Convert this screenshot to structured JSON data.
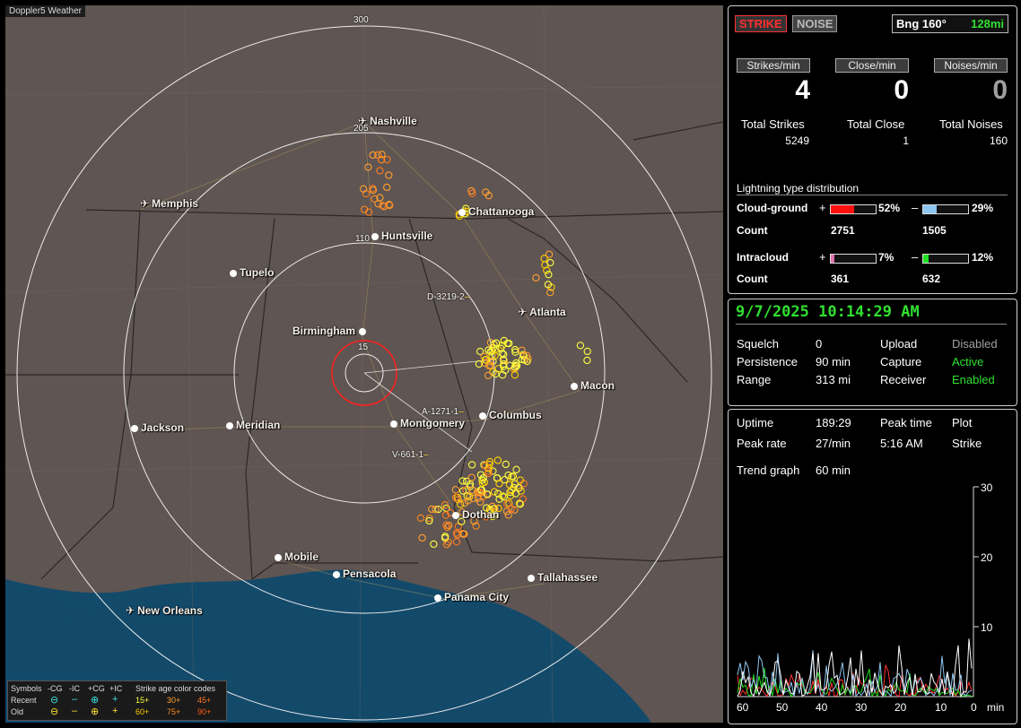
{
  "map": {
    "title": "Doppler5 Weather",
    "ring_labels": [
      "300",
      "205",
      "110",
      "15"
    ],
    "cities": [
      {
        "name": "Nashville",
        "kind": "airport"
      },
      {
        "name": "Memphis",
        "kind": "airport"
      },
      {
        "name": "Chattanooga",
        "kind": "city"
      },
      {
        "name": "Huntsville",
        "kind": "city"
      },
      {
        "name": "Tupelo",
        "kind": "city"
      },
      {
        "name": "Atlanta",
        "kind": "airport"
      },
      {
        "name": "Birmingham",
        "kind": "city"
      },
      {
        "name": "Macon",
        "kind": "city"
      },
      {
        "name": "Columbus",
        "kind": "city"
      },
      {
        "name": "Jackson",
        "kind": "city"
      },
      {
        "name": "Meridian",
        "kind": "city"
      },
      {
        "name": "Montgomery",
        "kind": "city"
      },
      {
        "name": "Dothan",
        "kind": "city"
      },
      {
        "name": "Mobile",
        "kind": "city"
      },
      {
        "name": "Pensacola",
        "kind": "city"
      },
      {
        "name": "Tallahassee",
        "kind": "city"
      },
      {
        "name": "Panama City",
        "kind": "city"
      },
      {
        "name": "New Orleans",
        "kind": "airport"
      }
    ],
    "storm_tags": [
      "D-3219-2",
      "A-1271-1",
      "V-661-1"
    ],
    "legend": {
      "symbols_label": "Symbols",
      "recent_label": "Recent",
      "old_label": "Old",
      "columns": [
        "-CG",
        "-IC",
        "+CG",
        "+IC"
      ],
      "age_label": "Strike age color codes",
      "recent_ages": [
        "15+",
        "30+",
        "45+"
      ],
      "old_ages": [
        "60+",
        "75+",
        "90+"
      ],
      "age_colors": [
        "#ffff40",
        "#ffa030",
        "#ff7a20",
        "#ffd000",
        "#ff8a20",
        "#ff5a10"
      ]
    }
  },
  "status": {
    "strike_button": "STRIKE",
    "noise_button": "NOISE",
    "bearing_label": "Bng 160°",
    "distance_label": "128mi",
    "rates": [
      {
        "header": "Strikes/min",
        "value": "4",
        "color": "#ffffff"
      },
      {
        "header": "Close/min",
        "value": "0",
        "color": "#ffffff"
      },
      {
        "header": "Noises/min",
        "value": "0",
        "color": "#a0a0a0"
      }
    ],
    "totals": [
      {
        "label": "Total Strikes",
        "value": "5249"
      },
      {
        "label": "Total Close",
        "value": "1"
      },
      {
        "label": "Total Noises",
        "value": "160"
      }
    ],
    "distribution": {
      "title": "Lightning type distribution",
      "cloud_ground_label": "Cloud-ground",
      "intracloud_label": "Intracloud",
      "count_label": "Count",
      "cg_pos_sign": "+",
      "cg_pos_percent": "52%",
      "cg_pos_fraction": 0.52,
      "cg_pos_color": "#ff1010",
      "cg_neg_sign": "–",
      "cg_neg_percent": "29%",
      "cg_neg_fraction": 0.29,
      "cg_neg_color": "#8ec6f0",
      "cg_pos_count": "2751",
      "cg_neg_count": "1505",
      "ic_pos_sign": "+",
      "ic_pos_percent": "7%",
      "ic_pos_fraction": 0.07,
      "ic_pos_color": "#e070b0",
      "ic_neg_sign": "–",
      "ic_neg_percent": "12%",
      "ic_neg_fraction": 0.12,
      "ic_neg_color": "#20e020",
      "ic_pos_count": "361",
      "ic_neg_count": "632"
    }
  },
  "settings": {
    "datetime": "9/7/2025 10:14:29 AM",
    "rows": [
      {
        "k1": "Squelch",
        "v1": "0",
        "k2": "Upload",
        "v2": "Disabled",
        "v2color": "#a0a0a0"
      },
      {
        "k1": "Persistence",
        "v1": "90 min",
        "k2": "Capture",
        "v2": "Active",
        "v2color": "#30e030"
      },
      {
        "k1": "Range",
        "v1": "313 mi",
        "k2": "Receiver",
        "v2": "Enabled",
        "v2color": "#30e030"
      }
    ]
  },
  "stats": {
    "uptime_label": "Uptime",
    "uptime_value": "189:29",
    "peak_time_label": "Peak time",
    "plot_label": "Plot",
    "peak_rate_label": "Peak rate",
    "peak_rate_value": "27/min",
    "peak_time_value": "5:16 AM",
    "plot_value": "Strike",
    "trend_label": "Trend graph",
    "trend_value": "60 min",
    "graph": {
      "y_ticks": [
        "30",
        "20",
        "10"
      ],
      "x_ticks": [
        "60",
        "50",
        "40",
        "30",
        "20",
        "10",
        "0"
      ],
      "x_unit": "min"
    }
  }
}
